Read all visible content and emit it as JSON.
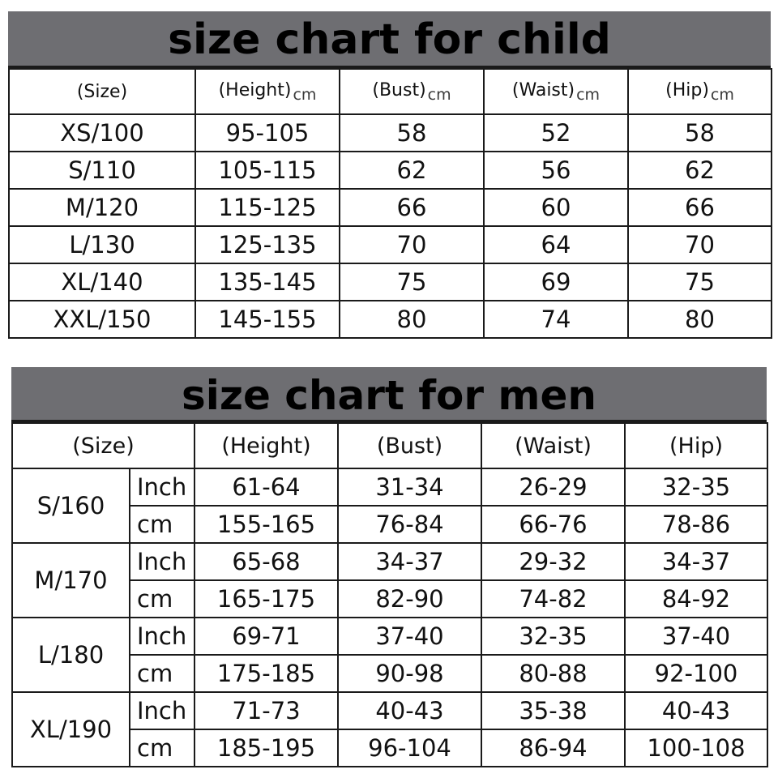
{
  "child_chart": {
    "title": "size chart for child",
    "headers": [
      "(Size)",
      "(Height)",
      "(Bust)",
      "(Waist)",
      "(Hip)"
    ],
    "header_units": [
      "",
      "cm",
      "cm",
      "cm",
      "cm"
    ],
    "rows": [
      [
        "XS/100",
        "95-105",
        "58",
        "52",
        "58"
      ],
      [
        "S/110",
        "105-115",
        "62",
        "56",
        "62"
      ],
      [
        "M/120",
        "115-125",
        "66",
        "60",
        "66"
      ],
      [
        "L/130",
        "125-135",
        "70",
        "64",
        "70"
      ],
      [
        "XL/140",
        "135-145",
        "75",
        "69",
        "75"
      ],
      [
        "XXL/150",
        "145-155",
        "80",
        "74",
        "80"
      ]
    ]
  },
  "men_chart": {
    "title": "size chart for men",
    "headers": [
      "(Size)",
      "(Height)",
      "(Bust)",
      "(Waist)",
      "(Hip)"
    ],
    "units": [
      "Inch",
      "cm"
    ],
    "sizes": [
      {
        "size": "S/160",
        "inch": [
          "61-64",
          "31-34",
          "26-29",
          "32-35"
        ],
        "cm": [
          "155-165",
          "76-84",
          "66-76",
          "78-86"
        ]
      },
      {
        "size": "M/170",
        "inch": [
          "65-68",
          "34-37",
          "29-32",
          "34-37"
        ],
        "cm": [
          "165-175",
          "82-90",
          "74-82",
          "84-92"
        ]
      },
      {
        "size": "L/180",
        "inch": [
          "69-71",
          "37-40",
          "32-35",
          "37-40"
        ],
        "cm": [
          "175-185",
          "90-98",
          "80-88",
          "92-100"
        ]
      },
      {
        "size": "XL/190",
        "inch": [
          "71-73",
          "40-43",
          "35-38",
          "40-43"
        ],
        "cm": [
          "185-195",
          "96-104",
          "86-94",
          "100-108"
        ]
      }
    ]
  }
}
